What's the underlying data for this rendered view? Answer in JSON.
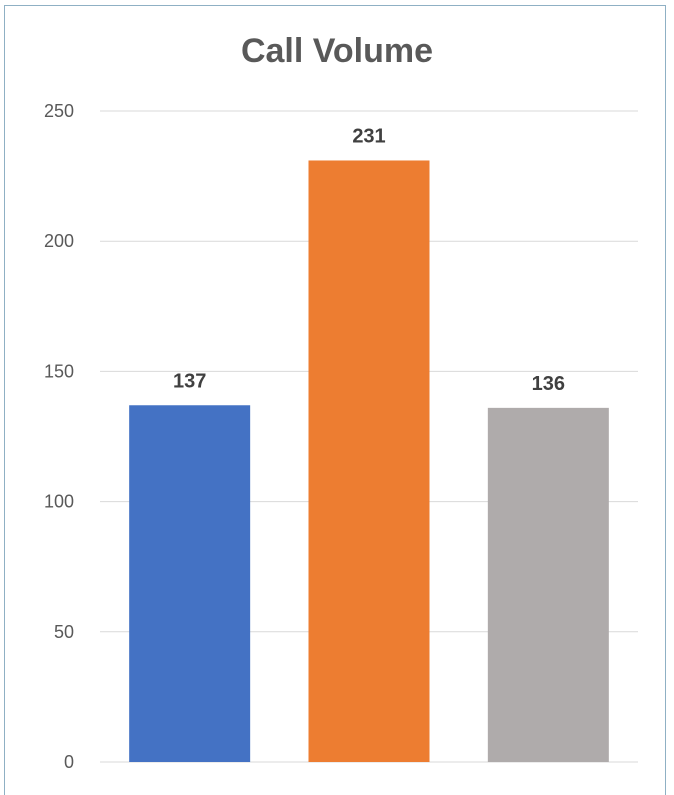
{
  "chart_data": {
    "type": "bar",
    "title": "Call Volume",
    "xlabel": "",
    "ylabel": "",
    "categories": [
      "",
      "",
      ""
    ],
    "values": [
      137,
      231,
      136
    ],
    "colors": [
      "#4472c4",
      "#ed7d31",
      "#afabab"
    ],
    "ylim": [
      0,
      250
    ],
    "yticks": [
      0,
      50,
      100,
      150,
      200,
      250
    ],
    "grid": true,
    "data_labels": true
  }
}
